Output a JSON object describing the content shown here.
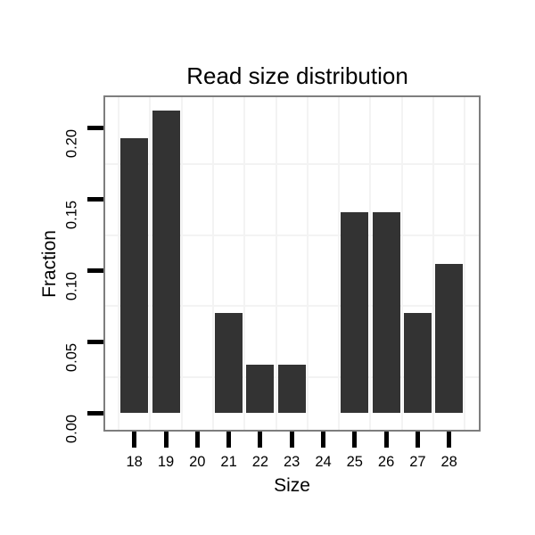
{
  "chart_data": {
    "type": "bar",
    "title": "Read size distribution",
    "xlabel": "Size",
    "ylabel": "Fraction",
    "categories": [
      "18",
      "19",
      "20",
      "21",
      "22",
      "23",
      "24",
      "25",
      "26",
      "27",
      "28"
    ],
    "values": [
      0.193,
      0.212,
      0,
      0.07,
      0.034,
      0.034,
      0,
      0.141,
      0.141,
      0.07,
      0.105
    ],
    "yticks": [
      0,
      0.05,
      0.1,
      0.15,
      0.2
    ],
    "ytick_labels": [
      "0.00",
      "0.05",
      "0.10",
      "0.15",
      "0.20"
    ],
    "ylim": [
      -0.0116,
      0.2216
    ],
    "legend_position": "none",
    "grid": "on",
    "grid_style": "faint minor lines between y ticks and at category boundaries",
    "colors": {
      "bar": "#333333",
      "panel_border": "#7e7e7e",
      "gridline": "#f3f3f3",
      "tick": "#000000",
      "text": "#000000",
      "background": "#ffffff"
    }
  }
}
